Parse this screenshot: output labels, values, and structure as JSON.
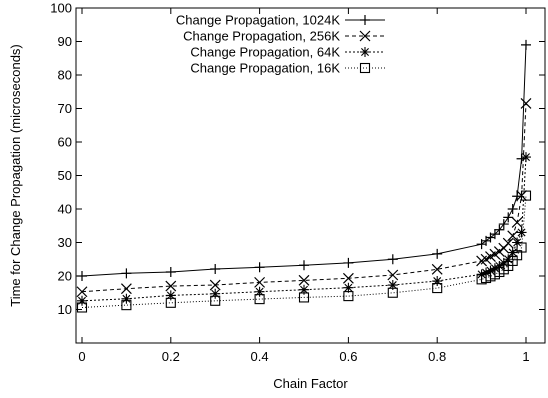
{
  "chart_data": {
    "type": "line",
    "title": "",
    "xlabel": "Chain Factor",
    "ylabel": "Time for Change Propagation (microseconds)",
    "xlim": [
      0,
      1
    ],
    "ylim": [
      0,
      100
    ],
    "xticks": [
      0,
      0.2,
      0.4,
      0.6,
      0.8,
      1
    ],
    "xtick_labels": [
      "0",
      "0.2",
      "0.4",
      "0.6",
      "0.8",
      "1"
    ],
    "yticks": [
      10,
      20,
      30,
      40,
      50,
      60,
      70,
      80,
      90,
      100
    ],
    "ytick_labels": [
      "10",
      "20",
      "30",
      "40",
      "50",
      "60",
      "70",
      "80",
      "90",
      "100"
    ],
    "grid": false,
    "legend_position": "top-center",
    "x": [
      0,
      0.1,
      0.2,
      0.3,
      0.4,
      0.5,
      0.6,
      0.7,
      0.8,
      0.9,
      0.91,
      0.92,
      0.93,
      0.94,
      0.95,
      0.96,
      0.97,
      0.98,
      0.99,
      1.0
    ],
    "series": [
      {
        "name": "Change Propagation, 1024K",
        "marker": "plus",
        "dash": "solid",
        "values": [
          20.0,
          20.8,
          21.2,
          22.1,
          22.6,
          23.2,
          23.9,
          25.0,
          26.6,
          29.5,
          30.5,
          31.5,
          32.5,
          33.8,
          35.5,
          37.5,
          40.0,
          43.8,
          55.0,
          89.0
        ]
      },
      {
        "name": "Change Propagation, 256K",
        "marker": "x",
        "dash": "dashed",
        "values": [
          15.3,
          16.2,
          17.0,
          17.3,
          18.1,
          18.7,
          19.3,
          20.3,
          22.0,
          24.5,
          25.0,
          25.8,
          26.5,
          27.3,
          28.3,
          29.8,
          32.0,
          36.0,
          44.0,
          71.5
        ]
      },
      {
        "name": "Change Propagation, 64K",
        "marker": "star",
        "dash": "dotted",
        "values": [
          12.6,
          13.2,
          14.2,
          14.7,
          15.3,
          15.9,
          16.5,
          17.3,
          18.5,
          20.5,
          21.0,
          21.6,
          22.3,
          23.0,
          23.9,
          25.0,
          27.0,
          30.0,
          33.0,
          55.5
        ]
      },
      {
        "name": "Change Propagation, 16K",
        "marker": "square",
        "dash": "fine-dotted",
        "values": [
          10.6,
          11.3,
          12.0,
          12.6,
          13.1,
          13.6,
          14.0,
          15.0,
          16.4,
          19.0,
          19.4,
          19.9,
          20.5,
          21.2,
          22.0,
          23.0,
          24.5,
          26.2,
          28.5,
          44.0
        ]
      }
    ]
  }
}
